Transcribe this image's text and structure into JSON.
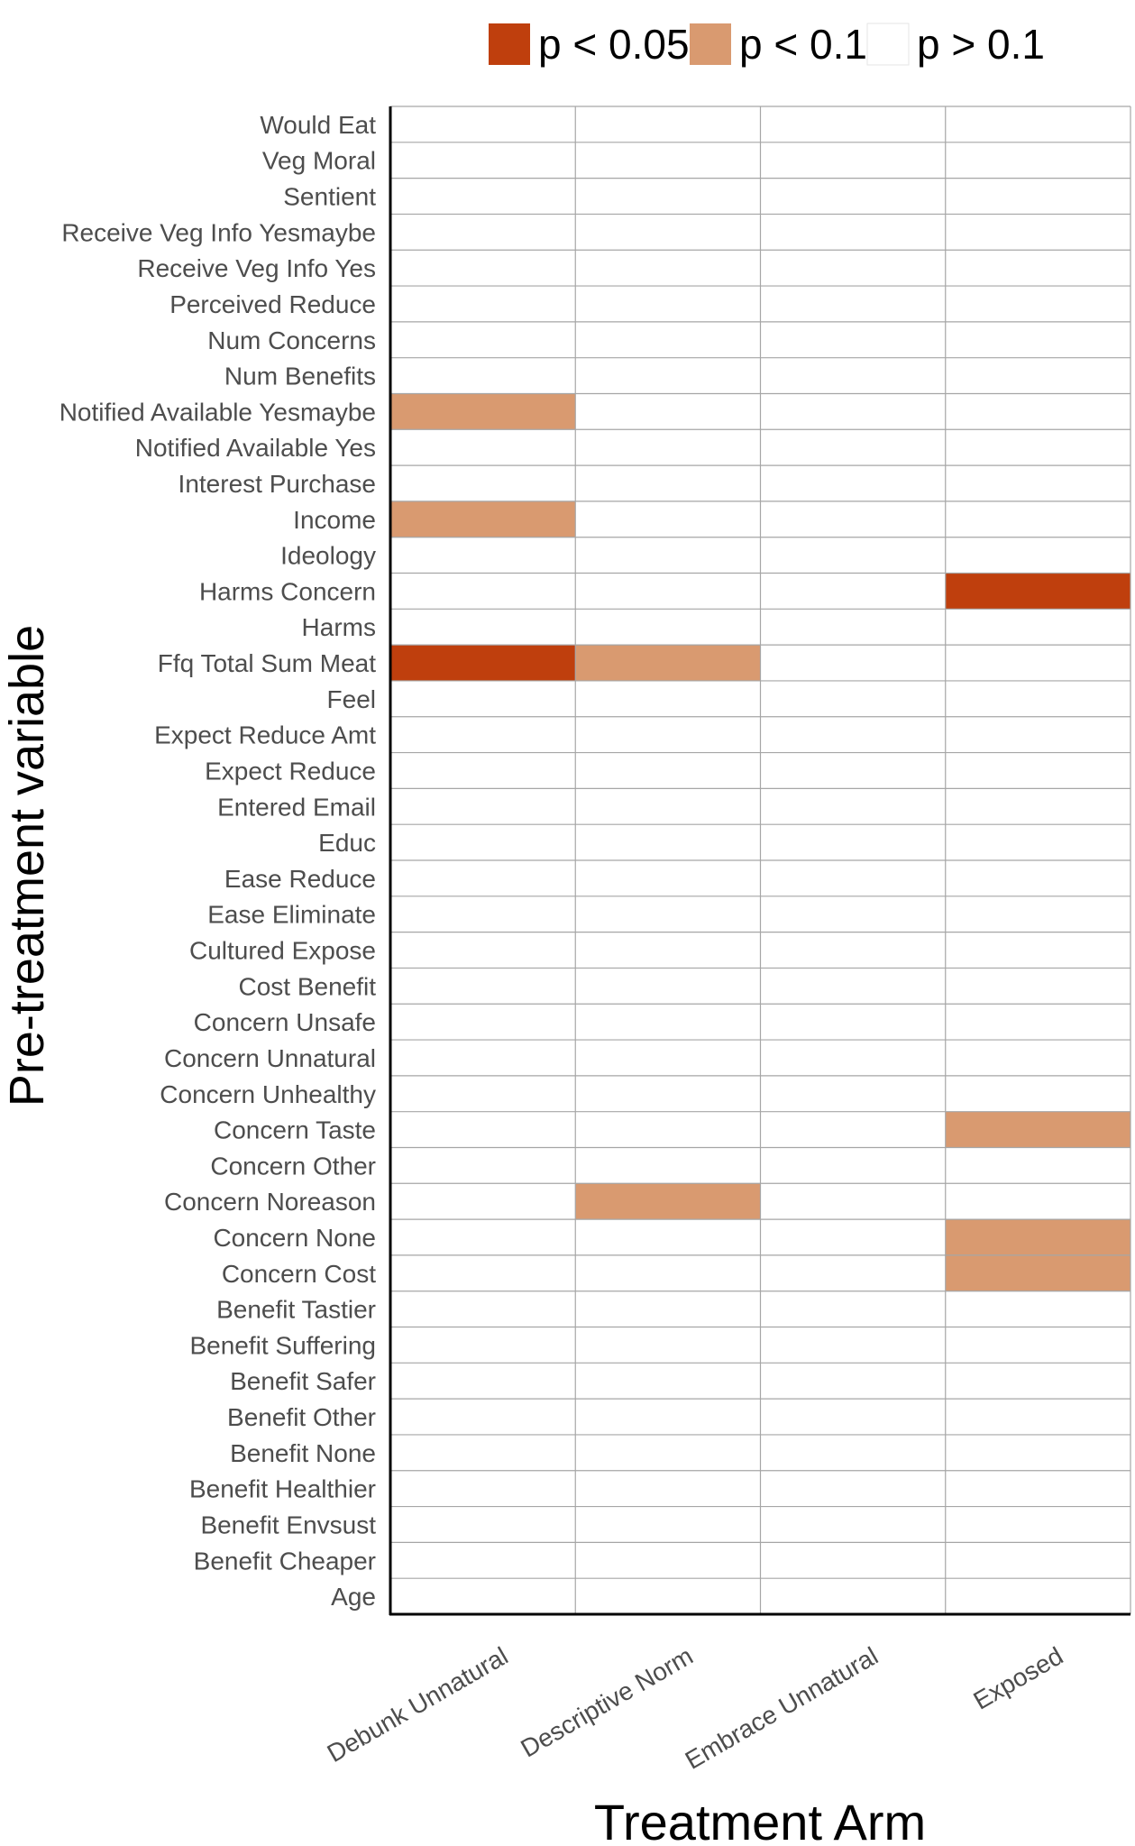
{
  "chart_data": {
    "type": "heatmap",
    "title": "",
    "xlabel": "Treatment Arm",
    "ylabel": "Pre-treatment variable",
    "x_categories": [
      "Debunk Unnatural",
      "Descriptive Norm",
      "Embrace Unnatural",
      "Exposed"
    ],
    "y_categories": [
      "Would Eat",
      "Veg Moral",
      "Sentient",
      "Receive Veg Info Yesmaybe",
      "Receive Veg Info Yes",
      "Perceived Reduce",
      "Num Concerns",
      "Num Benefits",
      "Notified Available Yesmaybe",
      "Notified Available Yes",
      "Interest Purchase",
      "Income",
      "Ideology",
      "Harms Concern",
      "Harms",
      "Ffq Total Sum Meat",
      "Feel",
      "Expect Reduce Amt",
      "Expect Reduce",
      "Entered Email",
      "Educ",
      "Ease Reduce",
      "Ease Eliminate",
      "Cultured Expose",
      "Cost Benefit",
      "Concern Unsafe",
      "Concern Unnatural",
      "Concern Unhealthy",
      "Concern Taste",
      "Concern Other",
      "Concern Noreason",
      "Concern None",
      "Concern Cost",
      "Benefit Tastier",
      "Benefit Suffering",
      "Benefit Safer",
      "Benefit Other",
      "Benefit None",
      "Benefit Healthier",
      "Benefit Envsust",
      "Benefit Cheaper",
      "Age"
    ],
    "legend": {
      "position": "top",
      "entries": [
        {
          "key": "sig05",
          "label": "p < 0.05",
          "color": "#bf3f0d"
        },
        {
          "key": "sig10",
          "label": "p < 0.1",
          "color": "#d99a70"
        },
        {
          "key": "ns",
          "label": "p > 0.1",
          "color": "#ffffff"
        }
      ]
    },
    "cells": [
      {
        "y": "Notified Available Yesmaybe",
        "x": "Debunk Unnatural",
        "level": "sig10"
      },
      {
        "y": "Income",
        "x": "Debunk Unnatural",
        "level": "sig10"
      },
      {
        "y": "Harms Concern",
        "x": "Exposed",
        "level": "sig05"
      },
      {
        "y": "Ffq Total Sum Meat",
        "x": "Debunk Unnatural",
        "level": "sig05"
      },
      {
        "y": "Ffq Total Sum Meat",
        "x": "Descriptive Norm",
        "level": "sig10"
      },
      {
        "y": "Concern Taste",
        "x": "Exposed",
        "level": "sig10"
      },
      {
        "y": "Concern Noreason",
        "x": "Descriptive Norm",
        "level": "sig10"
      },
      {
        "y": "Concern None",
        "x": "Exposed",
        "level": "sig10"
      },
      {
        "y": "Concern Cost",
        "x": "Exposed",
        "level": "sig10"
      }
    ],
    "default_level": "ns",
    "grid": true,
    "colors": {
      "grid": "#a6a6a6",
      "axis": "#000000",
      "tick_label": "#4d4d4d"
    }
  }
}
